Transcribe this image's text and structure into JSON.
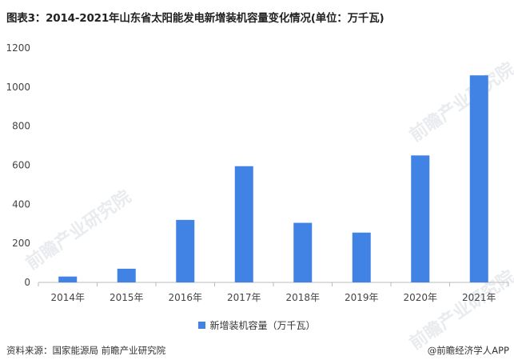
{
  "title": "图表3：2014-2021年山东省太阳能发电新增装机容量变化情况(单位：万千瓦)",
  "source": "资料来源：国家能源局 前瞻产业研究院",
  "brand": "@前瞻经济学人APP",
  "watermark": "前瞻产业研究院",
  "colors": {
    "bar": "#4183e5",
    "axis": "#bbbbbb"
  },
  "chart_data": {
    "type": "bar",
    "categories": [
      "2014年",
      "2015年",
      "2016年",
      "2017年",
      "2018年",
      "2019年",
      "2020年",
      "2021年"
    ],
    "series": [
      {
        "name": "新增装机容量（万千瓦）",
        "values": [
          30,
          70,
          320,
          595,
          305,
          255,
          650,
          1060
        ]
      }
    ],
    "ylim": [
      0,
      1200
    ],
    "yticks": [
      0,
      200,
      400,
      600,
      800,
      1000,
      1200
    ],
    "grid": false,
    "legend": "bottom-center"
  }
}
